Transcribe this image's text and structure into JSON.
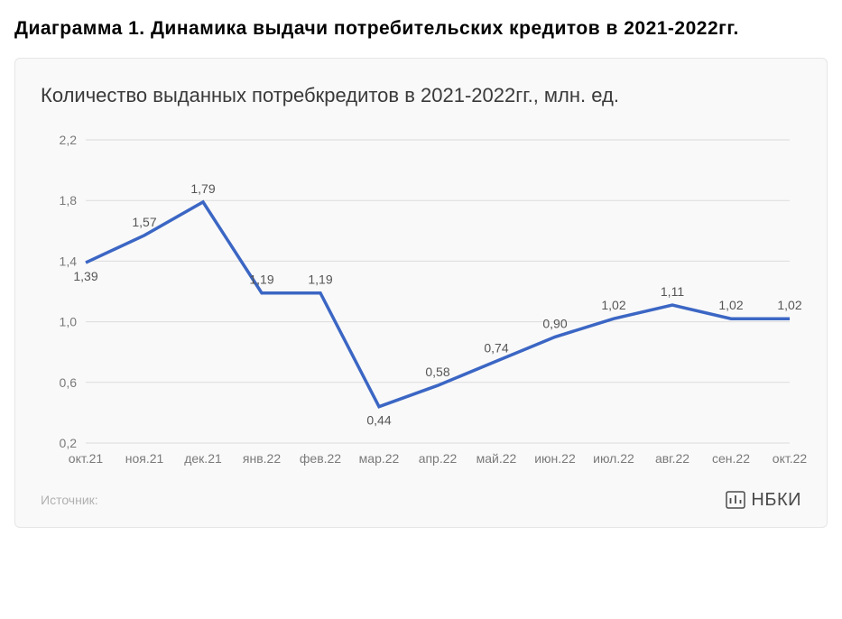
{
  "page_heading": "Диаграмма 1. Динамика выдачи потребительских кредитов в 2021-2022гг.",
  "chart": {
    "type": "line",
    "title": "Количество выданных потребкредитов в 2021-2022гг., млн. ед.",
    "background_color": "#f9f9f9",
    "border_color": "#e6e6e6",
    "line_color": "#3b66c4",
    "line_width": 3.5,
    "grid_color": "#dcdcdc",
    "axis_label_color": "#7a7a7a",
    "value_label_color": "#555555",
    "title_color": "#3a3a3a",
    "title_fontsize": 22,
    "axis_fontsize": 14,
    "value_fontsize": 14,
    "y": {
      "min": 0.2,
      "max": 2.2,
      "step": 0.4,
      "ticks": [
        "0,2",
        "0,6",
        "1,0",
        "1,4",
        "1,8",
        "2,2"
      ]
    },
    "categories": [
      "окт.21",
      "ноя.21",
      "дек.21",
      "янв.22",
      "фев.22",
      "мар.22",
      "апр.22",
      "май.22",
      "июн.22",
      "июл.22",
      "авг.22",
      "сен.22",
      "окт.22"
    ],
    "values": [
      1.39,
      1.57,
      1.79,
      1.19,
      1.19,
      0.44,
      0.58,
      0.74,
      0.9,
      1.02,
      1.11,
      1.02,
      1.02
    ],
    "value_labels": [
      "1,39",
      "1,57",
      "1,79",
      "1,19",
      "1,19",
      "0,44",
      "0,58",
      "0,74",
      "0,90",
      "1,02",
      "1,11",
      "1,02",
      "1,02"
    ],
    "label_positions": [
      "below",
      "above",
      "above",
      "above",
      "above",
      "below",
      "above",
      "above",
      "above",
      "above",
      "above",
      "above",
      "above"
    ]
  },
  "footer": {
    "source_label": "Источник:",
    "brand": "НБКИ"
  }
}
